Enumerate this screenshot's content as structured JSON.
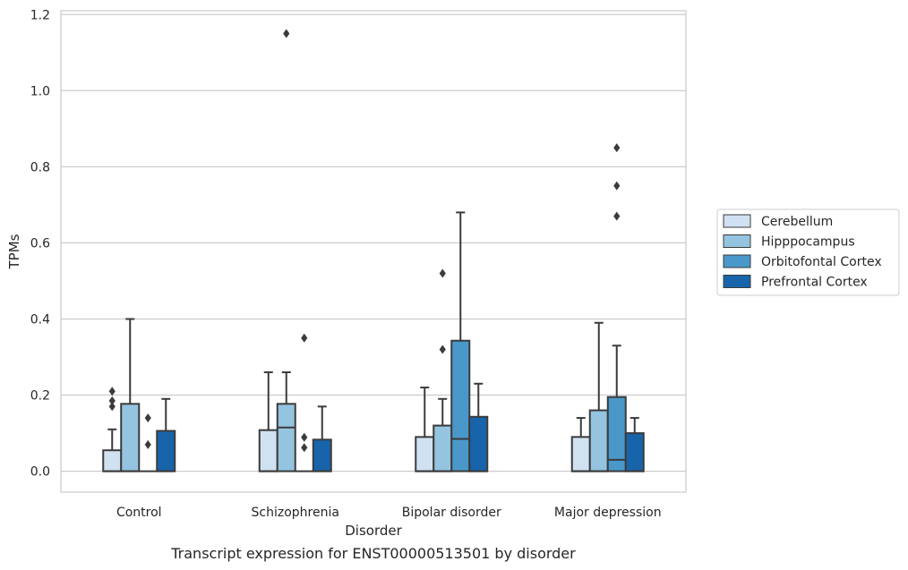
{
  "chart_data": {
    "type": "box",
    "title": "",
    "caption": "Transcript expression for ENST00000513501 by disorder",
    "xlabel": "Disorder",
    "ylabel": "TPMs",
    "ylim": [
      -0.055,
      1.21
    ],
    "yticks": [
      0.0,
      0.2,
      0.4,
      0.6,
      0.8,
      1.0,
      1.2
    ],
    "grid": "horizontal",
    "legend_position": "right",
    "categories": [
      "Control",
      "Schizophrenia",
      "Bipolar disorder",
      "Major depression"
    ],
    "series": [
      {
        "name": "Cerebellum",
        "color": "#d0e1f2",
        "boxes": [
          {
            "whisker_low": 0.0,
            "q1": 0.0,
            "median": 0.0,
            "q3": 0.055,
            "whisker_high": 0.11,
            "outliers": [
              0.17,
              0.185,
              0.21
            ]
          },
          {
            "whisker_low": 0.0,
            "q1": 0.0,
            "median": 0.0,
            "q3": 0.108,
            "whisker_high": 0.26,
            "outliers": []
          },
          {
            "whisker_low": 0.0,
            "q1": 0.0,
            "median": 0.0,
            "q3": 0.09,
            "whisker_high": 0.22,
            "outliers": []
          },
          {
            "whisker_low": 0.0,
            "q1": 0.0,
            "median": 0.0,
            "q3": 0.09,
            "whisker_high": 0.14,
            "outliers": []
          }
        ]
      },
      {
        "name": "Hipppocampus",
        "color": "#94c4df",
        "boxes": [
          {
            "whisker_low": 0.0,
            "q1": 0.0,
            "median": 0.0,
            "q3": 0.177,
            "whisker_high": 0.4,
            "outliers": []
          },
          {
            "whisker_low": 0.0,
            "q1": 0.0,
            "median": 0.115,
            "q3": 0.177,
            "whisker_high": 0.26,
            "outliers": [
              1.15
            ]
          },
          {
            "whisker_low": 0.0,
            "q1": 0.0,
            "median": 0.0,
            "q3": 0.12,
            "whisker_high": 0.19,
            "outliers": [
              0.32,
              0.52
            ]
          },
          {
            "whisker_low": 0.0,
            "q1": 0.0,
            "median": 0.0,
            "q3": 0.16,
            "whisker_high": 0.39,
            "outliers": []
          }
        ]
      },
      {
        "name": "Orbitofontal Cortex",
        "color": "#4a98c9",
        "boxes": [
          {
            "whisker_low": 0.0,
            "q1": 0.0,
            "median": 0.0,
            "q3": 0.0,
            "whisker_high": 0.0,
            "outliers": [
              0.07,
              0.14
            ]
          },
          {
            "whisker_low": 0.0,
            "q1": 0.0,
            "median": 0.0,
            "q3": 0.0,
            "whisker_high": 0.0,
            "outliers": [
              0.062,
              0.089,
              0.35
            ]
          },
          {
            "whisker_low": 0.0,
            "q1": 0.0,
            "median": 0.085,
            "q3": 0.343,
            "whisker_high": 0.68,
            "outliers": []
          },
          {
            "whisker_low": 0.0,
            "q1": 0.0,
            "median": 0.03,
            "q3": 0.195,
            "whisker_high": 0.33,
            "outliers": [
              0.67,
              0.75,
              0.85
            ]
          }
        ]
      },
      {
        "name": "Prefrontal Cortex",
        "color": "#1764ab",
        "boxes": [
          {
            "whisker_low": 0.0,
            "q1": 0.0,
            "median": 0.0,
            "q3": 0.106,
            "whisker_high": 0.19,
            "outliers": []
          },
          {
            "whisker_low": 0.0,
            "q1": 0.0,
            "median": 0.0,
            "q3": 0.083,
            "whisker_high": 0.17,
            "outliers": []
          },
          {
            "whisker_low": 0.0,
            "q1": 0.0,
            "median": 0.0,
            "q3": 0.143,
            "whisker_high": 0.23,
            "outliers": []
          },
          {
            "whisker_low": 0.0,
            "q1": 0.0,
            "median": 0.0,
            "q3": 0.1,
            "whisker_high": 0.14,
            "outliers": []
          }
        ]
      }
    ]
  }
}
